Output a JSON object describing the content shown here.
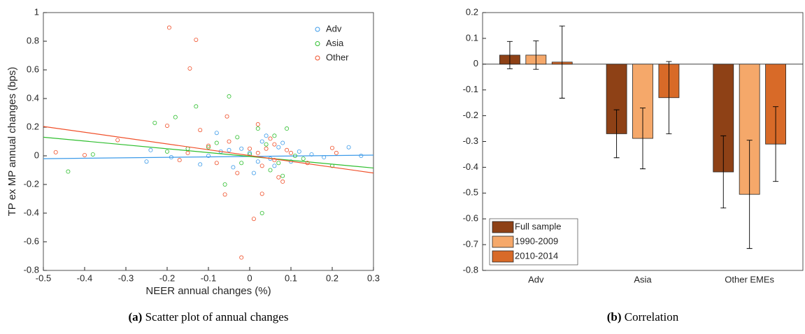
{
  "chart_data": [
    {
      "type": "scatter",
      "caption_label": "(a)",
      "caption": "Scatter plot of annual changes",
      "x_label": "NEER annual changes (%)",
      "y_label": "TP ex MP annual changes (bps)",
      "xlim": [
        -0.5,
        0.3
      ],
      "xticks": [
        -0.5,
        -0.4,
        -0.3,
        -0.2,
        -0.1,
        0,
        0.1,
        0.2,
        0.3
      ],
      "ylim": [
        -0.8,
        1
      ],
      "yticks": [
        -0.8,
        -0.6,
        -0.4,
        -0.2,
        0,
        0.2,
        0.4,
        0.6,
        0.8,
        1
      ],
      "legend": "upper right",
      "series": [
        {
          "name": "Adv",
          "color": "#3d9be9",
          "x": [
            -0.25,
            -0.24,
            -0.19,
            0.27,
            0.24,
            0.18,
            0.15,
            -0.1,
            -0.07,
            -0.04,
            0.0,
            0.02,
            0.03,
            0.04,
            0.05,
            0.07,
            0.1,
            0.12,
            -0.12,
            -0.08,
            0.01,
            0.08,
            -0.02,
            0.06,
            -0.05
          ],
          "values": [
            -0.04,
            0.04,
            -0.01,
            0.0,
            0.06,
            -0.01,
            0.01,
            0.0,
            0.03,
            -0.08,
            0.02,
            -0.04,
            0.1,
            0.14,
            -0.02,
            0.06,
            -0.04,
            0.03,
            -0.06,
            0.16,
            -0.12,
            0.09,
            0.05,
            -0.07,
            0.04
          ],
          "fit": {
            "x": [
              -0.5,
              0.3
            ],
            "y": [
              -0.02,
              0.005
            ]
          }
        },
        {
          "name": "Asia",
          "color": "#2fbf2f",
          "x": [
            -0.44,
            -0.38,
            -0.23,
            -0.18,
            -0.13,
            -0.05,
            0.03,
            0.2,
            0.09,
            0.02,
            -0.06,
            -0.1,
            -0.03,
            0.05,
            0.07,
            -0.15,
            0.11,
            -0.02,
            0.04,
            0.0,
            -0.08,
            0.06,
            0.13,
            -0.2,
            0.08
          ],
          "values": [
            -0.11,
            0.01,
            0.23,
            0.27,
            0.345,
            0.415,
            -0.4,
            -0.07,
            0.19,
            0.19,
            -0.2,
            0.06,
            0.13,
            -0.1,
            -0.05,
            0.05,
            0.0,
            -0.05,
            0.08,
            0.01,
            0.09,
            0.14,
            -0.02,
            0.03,
            -0.14
          ],
          "fit": {
            "x": [
              -0.5,
              0.3
            ],
            "y": [
              0.13,
              -0.085
            ]
          }
        },
        {
          "name": "Other",
          "color": "#f0502a",
          "x": [
            -0.195,
            -0.13,
            -0.145,
            -0.055,
            -0.32,
            -0.47,
            -0.4,
            -0.2,
            0.01,
            -0.02,
            0.02,
            0.03,
            -0.06,
            0.2,
            0.21,
            -0.1,
            -0.05,
            0.0,
            0.02,
            0.04,
            0.06,
            0.08,
            0.07,
            0.05,
            -0.15,
            -0.08,
            0.1,
            -0.03,
            0.03,
            -0.17,
            0.09,
            0.06,
            -0.12,
            0.14
          ],
          "values": [
            0.895,
            0.81,
            0.61,
            0.275,
            0.11,
            0.025,
            0.005,
            0.21,
            -0.44,
            -0.71,
            0.22,
            -0.265,
            -0.27,
            0.055,
            0.02,
            0.07,
            0.1,
            0.05,
            0.02,
            0.05,
            -0.03,
            -0.18,
            -0.15,
            0.12,
            0.02,
            -0.05,
            0.02,
            -0.12,
            -0.07,
            -0.03,
            0.04,
            0.08,
            0.18,
            -0.05
          ],
          "fit": {
            "x": [
              -0.5,
              0.3
            ],
            "y": [
              0.205,
              -0.12
            ]
          }
        }
      ]
    },
    {
      "type": "bar",
      "caption_label": "(b)",
      "caption": "Correlation",
      "categories": [
        "Adv",
        "Asia",
        "Other EMEs"
      ],
      "ylim": [
        -0.8,
        0.2
      ],
      "yticks": [
        -0.8,
        -0.7,
        -0.6,
        -0.5,
        -0.4,
        -0.3,
        -0.2,
        -0.1,
        0,
        0.1,
        0.2
      ],
      "legend": "lower left",
      "series": [
        {
          "name": "Full sample",
          "color": "#8e4116",
          "values": [
            0.035,
            -0.27,
            -0.418
          ],
          "errors": [
            0.053,
            0.093,
            0.14
          ]
        },
        {
          "name": "1990-2009",
          "color": "#f5a86a",
          "values": [
            0.035,
            -0.288,
            -0.505
          ],
          "errors": [
            0.055,
            0.118,
            0.21
          ]
        },
        {
          "name": "2010-2014",
          "color": "#d86a28",
          "values": [
            0.008,
            -0.13,
            -0.31
          ],
          "errors": [
            0.14,
            0.14,
            0.145
          ]
        }
      ]
    }
  ]
}
